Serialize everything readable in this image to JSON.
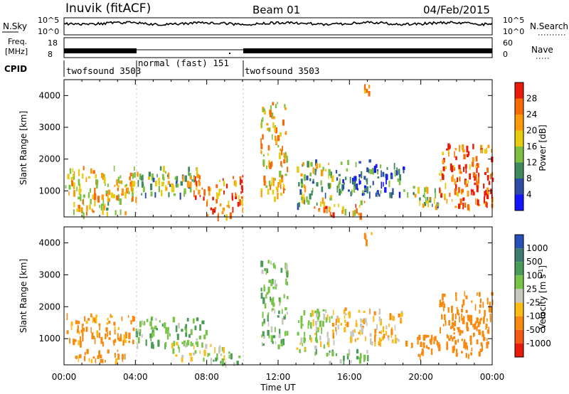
{
  "header": {
    "station": "Inuvik (fitACF)",
    "beam": "Beam 01",
    "date": "04/Feb/2015"
  },
  "strip_labels": {
    "nsky": "N.Sky",
    "nsky_ticks": [
      "10^5",
      "10^0"
    ],
    "nsearch": "N.Search",
    "nsearch_ticks": [
      "10^5",
      "10^0"
    ],
    "freq_line1": "Freq.",
    "freq_line2": "[MHz]",
    "freq_ticks": [
      "18",
      "8"
    ],
    "nave": "Nave",
    "nave_ticks": [
      "60",
      "0"
    ],
    "cpid": "CPID"
  },
  "cpid_segments": [
    {
      "label": "twofsound 3503",
      "start_h": 0,
      "end_h": 4
    },
    {
      "label": "normal (fast) 151",
      "start_h": 4,
      "end_h": 10
    },
    {
      "label": "twofsound 3503",
      "start_h": 10,
      "end_h": 24
    }
  ],
  "axes": {
    "xlabel": "Time UT",
    "xticks": [
      "00:00",
      "04:00",
      "08:00",
      "12:00",
      "16:00",
      "20:00",
      "00:00"
    ],
    "xlim_h": [
      0,
      24
    ],
    "ylabel": "Slant Range [km]",
    "yticks": [
      1000,
      2000,
      3000,
      4000
    ],
    "ylim_km": [
      180,
      4500
    ]
  },
  "colorbars": {
    "power": {
      "label": "Power [dB]",
      "ticks": [
        "4",
        "8",
        "12",
        "16",
        "20",
        "24",
        "28"
      ],
      "colors": [
        "#1414ff",
        "#2c4ea8",
        "#3e8a5c",
        "#7ec142",
        "#e8cc12",
        "#fb9a0a",
        "#f86a08",
        "#e81a0a"
      ]
    },
    "velocity": {
      "label": "Velocity [m s",
      "label_sup": "-1",
      "label_close": "]",
      "ticks": [
        "1000",
        "500",
        "100",
        "25",
        "-25",
        "-100",
        "-500",
        "-1000"
      ],
      "colors": [
        "#2850b8",
        "#3c7c70",
        "#4a9a58",
        "#78c448",
        "#c8c8c0",
        "#fbbc18",
        "#f88a10",
        "#f45a14",
        "#e81a0a"
      ]
    }
  },
  "chart_data": [
    {
      "type": "heatmap",
      "panel": "power",
      "description_units": "x = hours UT, y = slant range km, v = power dB",
      "xlim": [
        0,
        24
      ],
      "ylim": [
        180,
        4500
      ],
      "scatter_regions": [
        {
          "x": [
            0,
            4
          ],
          "y": [
            700,
            1800
          ],
          "v": 20
        },
        {
          "x": [
            0.5,
            3.5
          ],
          "y": [
            300,
            700
          ],
          "v": 18
        },
        {
          "x": [
            4,
            7.5
          ],
          "y": [
            900,
            1800
          ],
          "v": 14
        },
        {
          "x": [
            7,
            10
          ],
          "y": [
            600,
            1500
          ],
          "v": 24
        },
        {
          "x": [
            8,
            10
          ],
          "y": [
            250,
            600
          ],
          "v": 26
        },
        {
          "x": [
            11,
            12.5
          ],
          "y": [
            800,
            3800
          ],
          "v": 20
        },
        {
          "x": [
            13,
            15
          ],
          "y": [
            600,
            2000
          ],
          "v": 14
        },
        {
          "x": [
            14,
            17
          ],
          "y": [
            300,
            700
          ],
          "v": 22
        },
        {
          "x": [
            15,
            19
          ],
          "y": [
            900,
            2000
          ],
          "v": 8
        },
        {
          "x": [
            19,
            21
          ],
          "y": [
            500,
            1200
          ],
          "v": 14
        },
        {
          "x": [
            21,
            24
          ],
          "y": [
            500,
            2500
          ],
          "v": 26
        },
        {
          "x": [
            16.5,
            17.2
          ],
          "y": [
            4100,
            4400
          ],
          "v": 22
        }
      ]
    },
    {
      "type": "heatmap",
      "panel": "velocity",
      "description_units": "x = hours UT, y = slant range km, v = velocity m/s",
      "xlim": [
        0,
        24
      ],
      "ylim": [
        180,
        4500
      ],
      "scatter_regions": [
        {
          "x": [
            0,
            4
          ],
          "y": [
            900,
            1800
          ],
          "v": -150
        },
        {
          "x": [
            0.5,
            3.5
          ],
          "y": [
            300,
            700
          ],
          "v": -150
        },
        {
          "x": [
            4,
            8
          ],
          "y": [
            800,
            1700
          ],
          "v": 80
        },
        {
          "x": [
            6,
            9
          ],
          "y": [
            400,
            900
          ],
          "v": 0
        },
        {
          "x": [
            8,
            10
          ],
          "y": [
            250,
            600
          ],
          "v": 80
        },
        {
          "x": [
            11,
            12.5
          ],
          "y": [
            800,
            3500
          ],
          "v": 80
        },
        {
          "x": [
            13,
            15
          ],
          "y": [
            600,
            2000
          ],
          "v": 20
        },
        {
          "x": [
            14,
            17
          ],
          "y": [
            300,
            700
          ],
          "v": 80
        },
        {
          "x": [
            15,
            19
          ],
          "y": [
            900,
            2000
          ],
          "v": -60
        },
        {
          "x": [
            19,
            21
          ],
          "y": [
            500,
            1200
          ],
          "v": -300
        },
        {
          "x": [
            21,
            24
          ],
          "y": [
            500,
            2500
          ],
          "v": -200
        },
        {
          "x": [
            16.5,
            17.2
          ],
          "y": [
            4100,
            4400
          ],
          "v": -150
        }
      ]
    }
  ]
}
